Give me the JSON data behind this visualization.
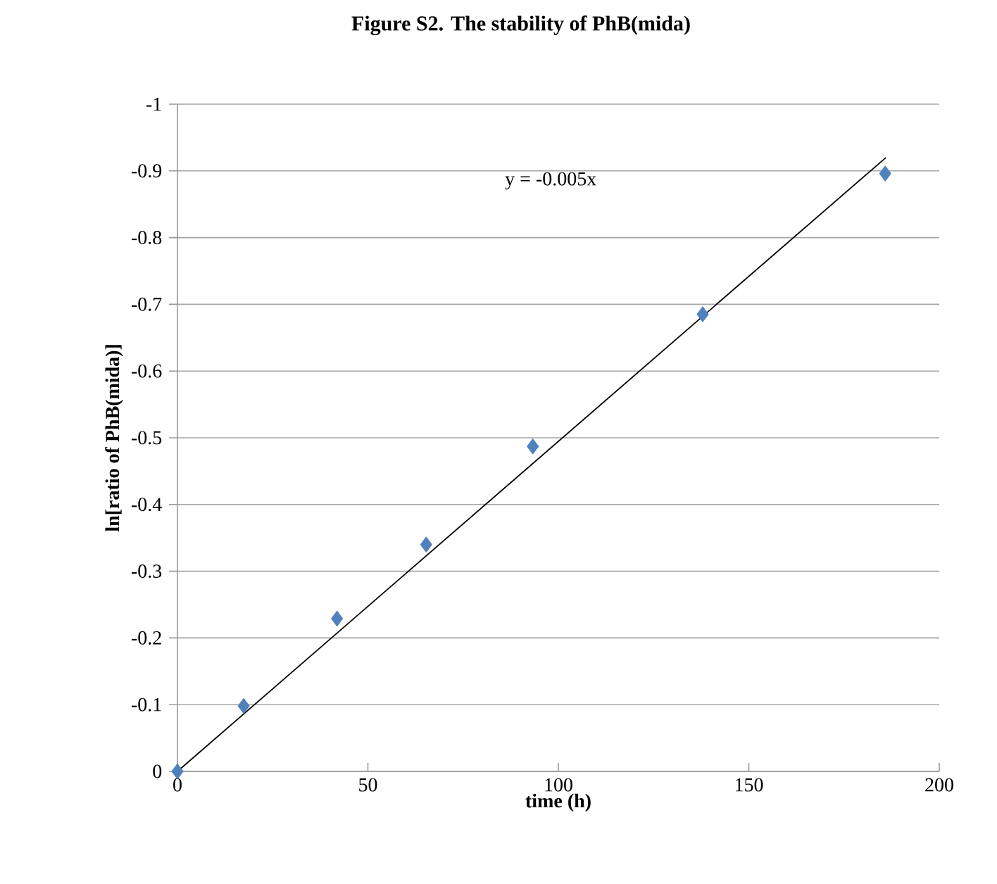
{
  "chart_data": {
    "type": "scatter",
    "title": "Figure S2. The stability of PhB(mida)",
    "xlabel": "time (h)",
    "ylabel": "ln[ratio of PhB(mida)]",
    "x": [
      0,
      17.4,
      41.9,
      65.3,
      93.3,
      137.9,
      185.8
    ],
    "series": [
      {
        "color": "#4f81bd",
        "values": [
          0,
          -0.098,
          -0.229,
          -0.34,
          -0.487,
          -0.685,
          -0.896
        ]
      },
      {
        "type": "line",
        "color": "#000000",
        "marker": "none",
        "x": [
          0,
          186
        ],
        "values": [
          0,
          -0.92
        ]
      }
    ],
    "annotations": [
      "y = -0.005x"
    ],
    "xlim": [
      0,
      200
    ],
    "xticks": [
      0,
      50,
      100,
      150,
      200
    ],
    "ylim": [
      0,
      -1
    ],
    "yticks": [
      0,
      -0.1,
      -0.2,
      -0.3,
      -0.4,
      -0.5,
      -0.6,
      -0.7,
      -0.8,
      -0.9,
      -1
    ],
    "grid": "y",
    "marker": "diamond"
  }
}
